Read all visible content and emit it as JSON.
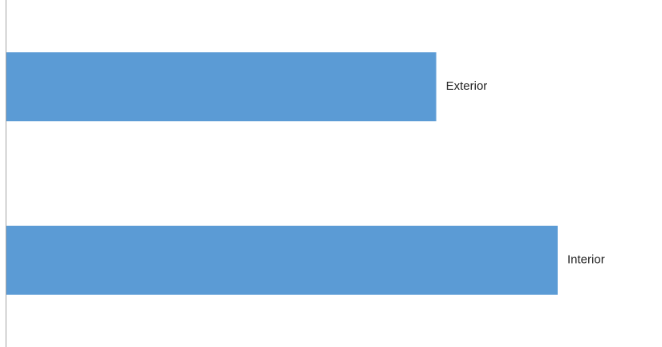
{
  "chart_data": {
    "type": "bar",
    "orientation": "horizontal",
    "categories": [
      "Exterior",
      "Interior"
    ],
    "values": [
      0.78,
      1.0
    ],
    "title": "",
    "xlabel": "",
    "ylabel": "",
    "xlim": [
      0,
      1.0
    ],
    "grid": false,
    "legend": "none",
    "bar_color": "#5B9BD5",
    "axis_color": "#A6A6A6"
  }
}
